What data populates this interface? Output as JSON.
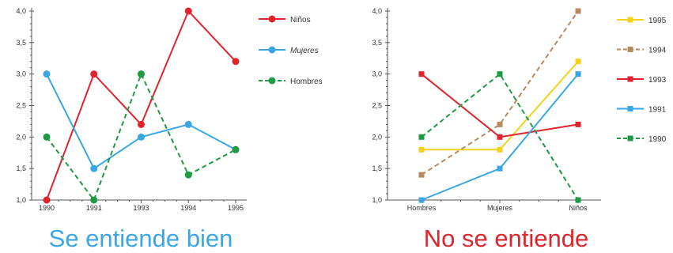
{
  "colors": {
    "red": "#e0242b",
    "blue": "#3aa6e3",
    "green": "#1f9a44",
    "yellow": "#f4d21a",
    "tan": "#b98a5e",
    "axis": "#555555",
    "good_caption": "#3aa6e3",
    "bad_caption": "#e0242b"
  },
  "chart_data": [
    {
      "type": "line",
      "caption": "Se entiende bien",
      "categories": [
        "1990",
        "1991",
        "1993",
        "1994",
        "1995"
      ],
      "ylim": [
        1.0,
        4.0
      ],
      "yticks": [
        "1,0",
        "1,5",
        "2,0",
        "2,5",
        "3,0",
        "3,5",
        "4,0"
      ],
      "legend_position": "right",
      "series": [
        {
          "name": "Niños",
          "values": [
            1.0,
            3.0,
            2.2,
            4.0,
            3.2
          ],
          "color": "red",
          "dashed": false,
          "italic": false
        },
        {
          "name": "Mujeres",
          "values": [
            3.0,
            1.5,
            2.0,
            2.2,
            1.8
          ],
          "color": "blue",
          "dashed": false,
          "italic": true
        },
        {
          "name": "Hombres",
          "values": [
            2.0,
            1.0,
            3.0,
            1.4,
            1.8
          ],
          "color": "green",
          "dashed": true,
          "italic": false
        }
      ]
    },
    {
      "type": "line",
      "caption": "No se entiende",
      "categories": [
        "Hombres",
        "Mujeres",
        "Niños"
      ],
      "ylim": [
        1.0,
        4.0
      ],
      "yticks": [
        "1,0",
        "1,5",
        "2,0",
        "2,5",
        "3,0",
        "3,5",
        "4,0"
      ],
      "legend_position": "right",
      "series": [
        {
          "name": "1995",
          "values": [
            1.8,
            1.8,
            3.2
          ],
          "color": "yellow",
          "dashed": false,
          "marker": "square"
        },
        {
          "name": "1994",
          "values": [
            1.4,
            2.2,
            4.0
          ],
          "color": "tan",
          "dashed": true,
          "marker": "square"
        },
        {
          "name": "1993",
          "values": [
            3.0,
            2.0,
            2.2
          ],
          "color": "red",
          "dashed": false,
          "marker": "square"
        },
        {
          "name": "1991",
          "values": [
            1.0,
            1.5,
            3.0
          ],
          "color": "blue",
          "dashed": false,
          "marker": "square"
        },
        {
          "name": "1990",
          "values": [
            2.0,
            3.0,
            1.0
          ],
          "color": "green",
          "dashed": true,
          "marker": "square"
        }
      ]
    }
  ]
}
